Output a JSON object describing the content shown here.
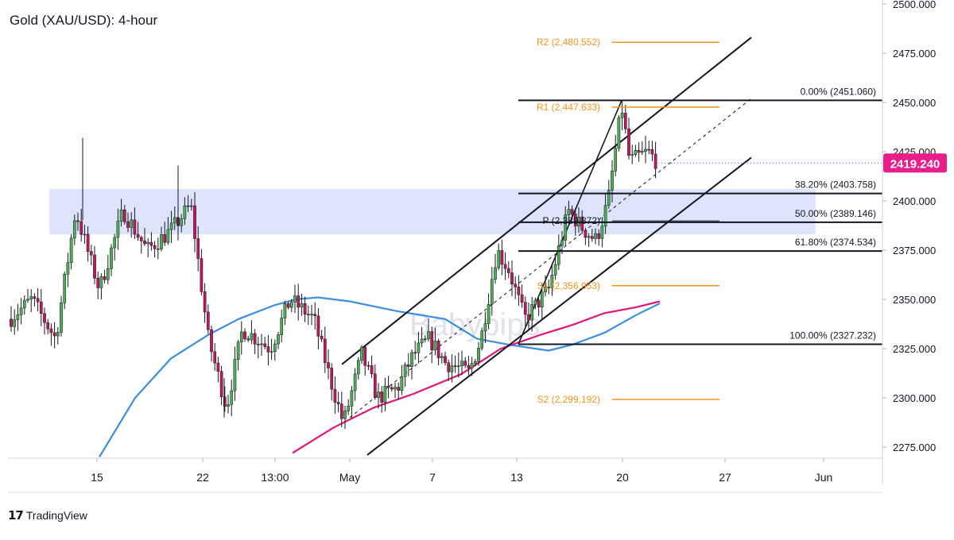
{
  "chart_data": {
    "type": "candlestick",
    "title": "Gold (XAU/USD): 4-hour",
    "watermark": "Babypips",
    "last_price": "2419.240",
    "y_ticks": [
      "2275.000",
      "2300.000",
      "2325.000",
      "2350.000",
      "2375.000",
      "2400.000",
      "2425.000",
      "2450.000",
      "2475.000",
      "2500.000"
    ],
    "x_ticks": [
      "15",
      "22",
      "13:00",
      "May",
      "7",
      "13",
      "20",
      "27",
      "Jun"
    ],
    "fib_levels": [
      {
        "label": "0.00% (2451.060)",
        "value": 2451.06
      },
      {
        "label": "38.20% (2403.758)",
        "value": 2403.758
      },
      {
        "label": "50.00% (2389.146)",
        "value": 2389.146
      },
      {
        "label": "61.80% (2374.534)",
        "value": 2374.534
      },
      {
        "label": "100.00% (2327.232)",
        "value": 2327.232
      }
    ],
    "pivots": [
      {
        "label": "R2 (2,480.552)",
        "value": 2480.552
      },
      {
        "label": "R1 (2,447.633)",
        "value": 2447.633
      },
      {
        "label": "P (2,389.872)",
        "value": 2389.872
      },
      {
        "label": "S1 (2,356.953)",
        "value": 2356.953
      },
      {
        "label": "S2 (2,299.192)",
        "value": 2299.192
      }
    ],
    "zone": {
      "low": 2383,
      "high": 2406
    },
    "colors": {
      "bull": "#4caf50",
      "bear": "#c2185b",
      "sma_fast": "#3b8fe0",
      "sma_slow": "#e0157a",
      "pivot": "#f7931a",
      "zone": "#dbe3fb",
      "price_tag": "#e91e8c"
    }
  },
  "footer": {
    "brand": "TradingView"
  }
}
